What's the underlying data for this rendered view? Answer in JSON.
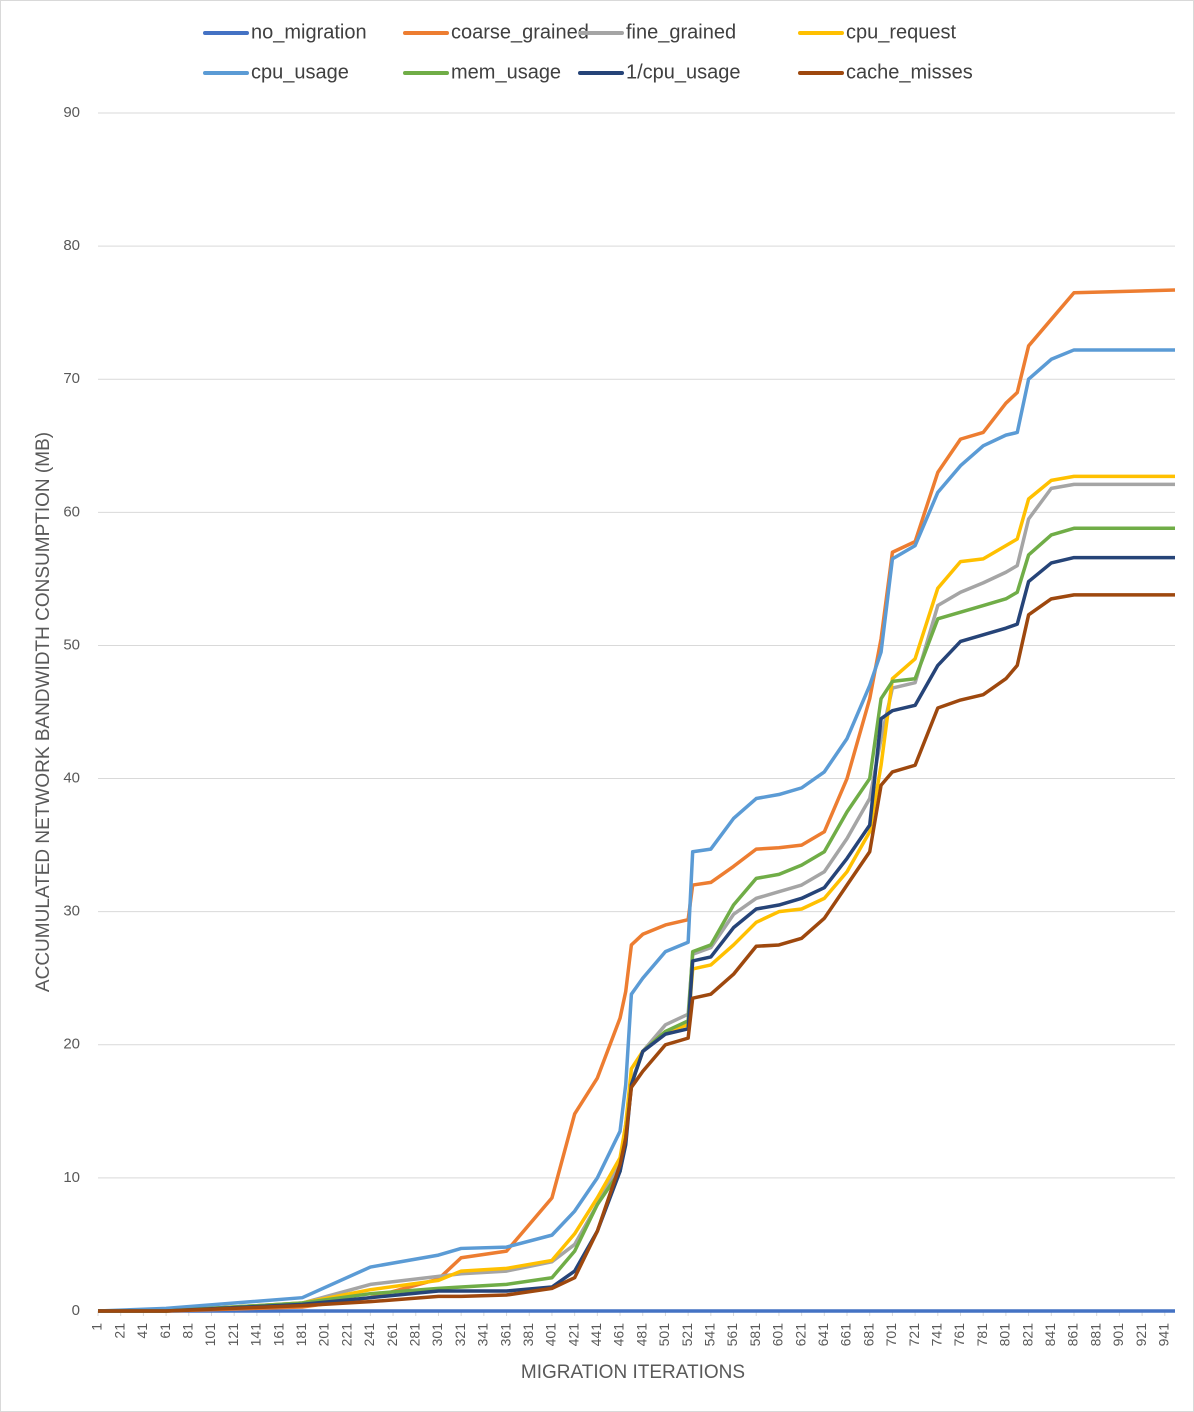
{
  "chart_data": {
    "type": "line",
    "x_label": "MIGRATION ITERATIONS",
    "y_label": "ACCUMULATED NETWORK BANDWIDTH CONSUMPTION (MB)",
    "x": [
      1,
      61,
      181,
      241,
      301,
      321,
      361,
      401,
      421,
      441,
      461,
      466,
      471,
      481,
      501,
      521,
      525,
      541,
      561,
      581,
      601,
      621,
      641,
      661,
      681,
      691,
      701,
      721,
      741,
      761,
      781,
      801,
      811,
      821,
      841,
      861,
      950
    ],
    "xlim": [
      1,
      950
    ],
    "xticks": [
      1,
      21,
      41,
      61,
      81,
      101,
      121,
      141,
      161,
      181,
      201,
      221,
      241,
      261,
      281,
      301,
      321,
      341,
      361,
      381,
      401,
      421,
      441,
      461,
      481,
      501,
      521,
      541,
      561,
      581,
      601,
      621,
      641,
      661,
      681,
      701,
      721,
      741,
      761,
      781,
      801,
      821,
      841,
      861,
      881,
      901,
      921,
      941
    ],
    "ylim": [
      0,
      90
    ],
    "yticks": [
      0,
      10,
      20,
      30,
      40,
      50,
      60,
      70,
      80,
      90
    ],
    "grid": true,
    "legend": "top",
    "series": [
      {
        "name": "no_migration",
        "color": "#4472c4",
        "values": [
          0,
          0,
          0,
          0,
          0,
          0,
          0,
          0,
          0,
          0,
          0,
          0,
          0,
          0,
          0,
          0,
          0,
          0,
          0,
          0,
          0,
          0,
          0,
          0,
          0,
          0,
          0,
          0,
          0,
          0,
          0,
          0,
          0,
          0,
          0,
          0,
          0
        ]
      },
      {
        "name": "coarse_grained",
        "color": "#ed7d31",
        "values": [
          0,
          0,
          0.3,
          1,
          2.4,
          4,
          4.5,
          8.5,
          14.8,
          17.5,
          22,
          24,
          27.5,
          28.3,
          29,
          29.4,
          32,
          32.2,
          33.4,
          34.7,
          34.8,
          35,
          36,
          40,
          46,
          50.5,
          57,
          57.8,
          63,
          65.5,
          66,
          68.2,
          69,
          72.5,
          74.5,
          76.5,
          76.7
        ]
      },
      {
        "name": "fine_grained",
        "color": "#a5a5a5",
        "values": [
          0,
          0,
          0.6,
          2,
          2.6,
          2.8,
          3,
          3.7,
          5,
          8,
          11,
          14,
          17.2,
          19.5,
          21.5,
          22.3,
          26.8,
          27.3,
          29.8,
          31,
          31.5,
          32,
          33,
          35.5,
          38.5,
          43,
          46.8,
          47.2,
          53,
          54,
          54.7,
          55.5,
          56,
          59.5,
          61.8,
          62.1,
          62.1
        ]
      },
      {
        "name": "cpu_request",
        "color": "#ffc000",
        "values": [
          0,
          0,
          0.6,
          1.6,
          2.3,
          3,
          3.2,
          3.8,
          5.8,
          8.5,
          11.5,
          14,
          18.2,
          19.5,
          21,
          21.5,
          25.7,
          26,
          27.5,
          29.2,
          30,
          30.2,
          31,
          33,
          36,
          41,
          47.5,
          49,
          54.3,
          56.3,
          56.5,
          57.5,
          58,
          61,
          62.4,
          62.7,
          62.7
        ]
      },
      {
        "name": "cpu_usage",
        "color": "#5b9bd5",
        "values": [
          0,
          0.2,
          1,
          3.3,
          4.2,
          4.7,
          4.8,
          5.7,
          7.5,
          10,
          13.5,
          17,
          23.8,
          25,
          27,
          27.7,
          34.5,
          34.7,
          37,
          38.5,
          38.8,
          39.3,
          40.5,
          43,
          47,
          49.5,
          56.5,
          57.5,
          61.5,
          63.5,
          65,
          65.8,
          66,
          70,
          71.5,
          72.2,
          72.2
        ]
      },
      {
        "name": "mem_usage",
        "color": "#70ad47",
        "values": [
          0,
          0,
          0.6,
          1.3,
          1.7,
          1.8,
          2,
          2.5,
          4.5,
          8,
          10.5,
          13,
          17,
          19.5,
          21,
          21.8,
          27,
          27.5,
          30.5,
          32.5,
          32.8,
          33.5,
          34.5,
          37.5,
          40,
          46,
          47.3,
          47.5,
          52,
          52.5,
          53,
          53.5,
          54,
          56.8,
          58.3,
          58.8,
          58.8
        ]
      },
      {
        "name": "1/cpu_usage",
        "color": "#264478",
        "values": [
          0,
          0,
          0.5,
          1,
          1.5,
          1.5,
          1.5,
          1.8,
          3,
          6,
          10.5,
          12.5,
          17,
          19.5,
          20.8,
          21.2,
          26.3,
          26.6,
          28.8,
          30.2,
          30.5,
          31,
          31.8,
          34,
          36.5,
          44.5,
          45.1,
          45.5,
          48.5,
          50.3,
          50.8,
          51.3,
          51.6,
          54.8,
          56.2,
          56.6,
          56.6
        ]
      },
      {
        "name": "cache_misses",
        "color": "#9e480e",
        "values": [
          0,
          0,
          0.4,
          0.7,
          1.1,
          1.1,
          1.2,
          1.7,
          2.5,
          6,
          11,
          13,
          16.8,
          18,
          20,
          20.5,
          23.5,
          23.8,
          25.3,
          27.4,
          27.5,
          28,
          29.5,
          32,
          34.5,
          39.5,
          40.5,
          41,
          45.3,
          45.9,
          46.3,
          47.5,
          48.5,
          52.3,
          53.5,
          53.8,
          53.8
        ]
      }
    ]
  }
}
